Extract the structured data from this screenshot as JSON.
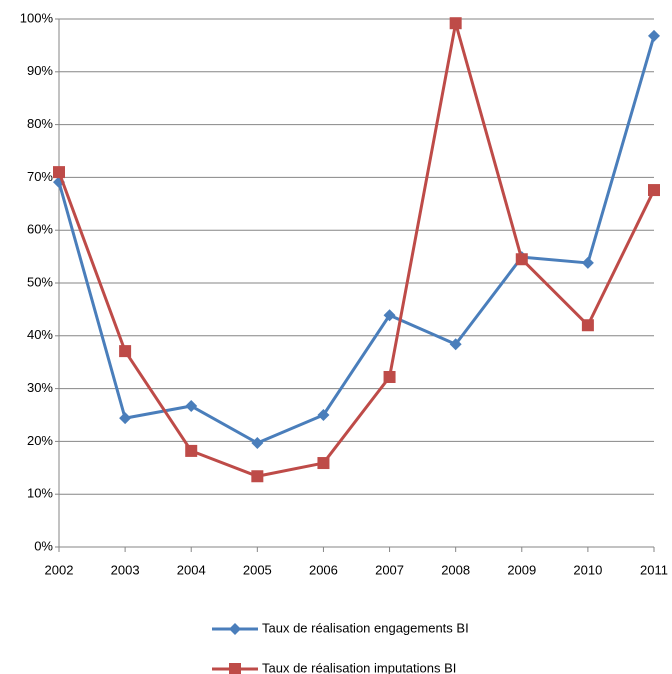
{
  "chart_data": {
    "type": "line",
    "categories": [
      "2002",
      "2003",
      "2004",
      "2005",
      "2006",
      "2007",
      "2008",
      "2009",
      "2010",
      "2011"
    ],
    "series": [
      {
        "name": "Taux de réalisation engagements BI",
        "color": "#4a7ebb",
        "marker": "diamond",
        "values": [
          69.1,
          24.4,
          26.7,
          19.7,
          25,
          43.9,
          38.4,
          54.9,
          53.8,
          96.8
        ]
      },
      {
        "name": "Taux de réalisation imputations  BI",
        "color": "#be4b48",
        "marker": "square",
        "values": [
          71,
          37.1,
          18.2,
          13.4,
          15.9,
          32.2,
          99.2,
          54.5,
          42,
          67.6
        ]
      }
    ],
    "ylim": [
      0,
      100
    ],
    "yticks": [
      {
        "value": 0,
        "label": "0%"
      },
      {
        "value": 10,
        "label": "10%"
      },
      {
        "value": 20,
        "label": "20%"
      },
      {
        "value": 30,
        "label": "30%"
      },
      {
        "value": 40,
        "label": "40%"
      },
      {
        "value": 50,
        "label": "50%"
      },
      {
        "value": 60,
        "label": "60%"
      },
      {
        "value": 70,
        "label": "70%"
      },
      {
        "value": 80,
        "label": "80%"
      },
      {
        "value": 90,
        "label": "90%"
      },
      {
        "value": 100,
        "label": "100%"
      }
    ],
    "grid": true,
    "legend": "bottom"
  }
}
